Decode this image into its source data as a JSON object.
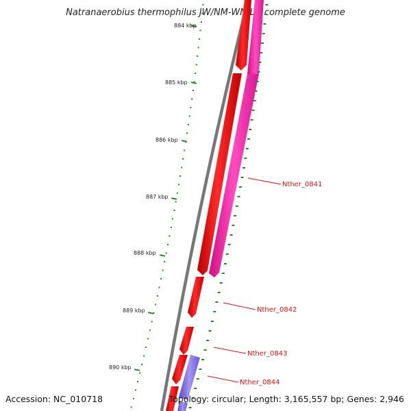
{
  "title": "Natranaerobius thermophilus JW/NM-WN-LF, complete genome",
  "kbp_labels": [
    "884 kbp",
    "885 kbp",
    "886 kbp",
    "887 kbp",
    "888 kbp",
    "889 kbp",
    "890 kbp"
  ],
  "gene_labels": [
    {
      "text": "Nther_0841"
    },
    {
      "text": "Nther_0842"
    },
    {
      "text": "Nther_0843"
    },
    {
      "text": "Nther_0844"
    }
  ],
  "footer": {
    "accession": "Accession: NC_010718",
    "stats": "Topology: circular; Length: 3,165,557 bp; Genes: 2,946"
  },
  "colors": {
    "backbone": "#808080",
    "cds_forward": "#ee1111",
    "cds_reverse": "#ff2aa8",
    "cds_other": "#7a66dd",
    "ticks": "#1e8a1e",
    "gene_label": "#dd1111"
  }
}
